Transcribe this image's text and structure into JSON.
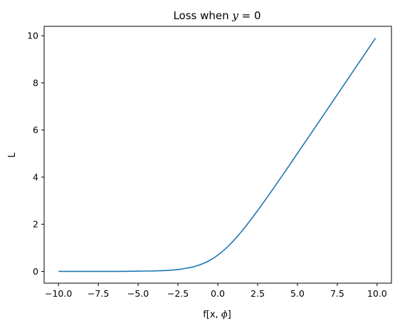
{
  "chart_data": {
    "type": "line",
    "title_prefix": "Loss when ",
    "title_var": "y",
    "title_suffix": " = 0",
    "xlabel_prefix": "f[x, ",
    "xlabel_var": "ϕ",
    "xlabel_suffix": "]",
    "ylabel": "L",
    "xlim": [
      -10.9,
      10.9
    ],
    "ylim": [
      -0.5,
      10.4
    ],
    "xticks": [
      -10.0,
      -7.5,
      -5.0,
      -2.5,
      0.0,
      2.5,
      5.0,
      7.5,
      10.0
    ],
    "xtick_labels": [
      "−10.0",
      "−7.5",
      "−5.0",
      "−2.5",
      "0.0",
      "2.5",
      "5.0",
      "7.5",
      "10.0"
    ],
    "yticks": [
      0,
      2,
      4,
      6,
      8,
      10
    ],
    "ytick_labels": [
      "0",
      "2",
      "4",
      "6",
      "8",
      "10"
    ],
    "grid": false,
    "series": [
      {
        "color": "#1f77b4",
        "x": [
          -10.0,
          -9.0,
          -8.0,
          -7.0,
          -6.0,
          -5.0,
          -4.0,
          -3.5,
          -3.0,
          -2.5,
          -2.0,
          -1.5,
          -1.0,
          -0.5,
          0.0,
          0.5,
          1.0,
          1.5,
          2.0,
          2.5,
          3.0,
          3.5,
          4.0,
          4.5,
          5.0,
          6.0,
          7.0,
          8.0,
          9.0,
          9.9
        ],
        "y": [
          0.0,
          0.0,
          0.0,
          0.0,
          0.0,
          0.01,
          0.02,
          0.03,
          0.05,
          0.08,
          0.13,
          0.2,
          0.31,
          0.47,
          0.69,
          0.97,
          1.31,
          1.7,
          2.13,
          2.58,
          3.05,
          3.53,
          4.02,
          4.51,
          5.01,
          6.0,
          7.0,
          8.0,
          9.0,
          9.9
        ]
      }
    ]
  }
}
